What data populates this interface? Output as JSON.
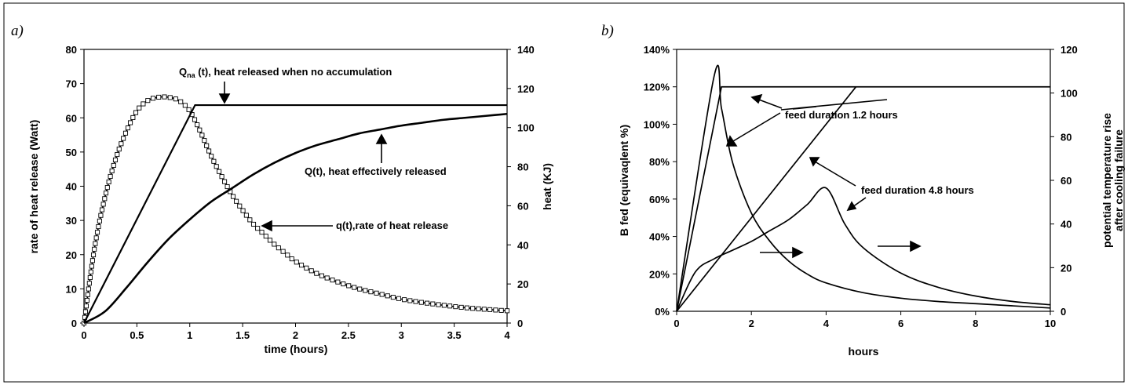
{
  "chart_data": [
    {
      "panel_label": "a)",
      "type": "line",
      "xlabel": "time (hours)",
      "ylabel": "rate of heat release (Watt)",
      "y2label": "heat (KJ)",
      "xlim": [
        0,
        4
      ],
      "ylim": [
        0,
        80
      ],
      "y2lim": [
        0,
        140
      ],
      "xticks": [
        "0",
        "0.5",
        "1",
        "1.5",
        "2",
        "2.5",
        "3",
        "3.5",
        "4"
      ],
      "yticks": [
        "0",
        "10",
        "20",
        "30",
        "40",
        "50",
        "60",
        "70",
        "80"
      ],
      "y2ticks": [
        "0",
        "20",
        "40",
        "60",
        "80",
        "100",
        "120",
        "140"
      ],
      "grid": false,
      "series": [
        {
          "axis": "left",
          "marker": "square",
          "x": [
            0,
            0.1,
            0.2,
            0.3,
            0.4,
            0.5,
            0.6,
            0.7,
            0.8,
            0.9,
            1.0,
            1.1,
            1.2,
            1.3,
            1.4,
            1.5,
            1.6,
            1.7,
            1.8,
            1.9,
            2.0,
            2.2,
            2.4,
            2.6,
            2.8,
            3.0,
            3.2,
            3.4,
            3.6,
            3.8,
            4.0
          ],
          "values": [
            0,
            22,
            37,
            48,
            56,
            62,
            65,
            66,
            66,
            65,
            62,
            56,
            49,
            43,
            37.5,
            33,
            29,
            26,
            23,
            20.5,
            18,
            14.5,
            12,
            10,
            8.5,
            7,
            6,
            5.2,
            4.5,
            4,
            3.6
          ]
        },
        {
          "axis": "right",
          "x": [
            0,
            0.2,
            0.4,
            0.6,
            0.8,
            1.0,
            1.2,
            1.4,
            1.6,
            1.8,
            2.0,
            2.2,
            2.4,
            2.6,
            2.8,
            3.0,
            3.2,
            3.4,
            3.6,
            3.8,
            4.0
          ],
          "values": [
            0,
            6,
            18,
            31,
            43,
            53,
            62,
            69,
            76,
            82,
            87,
            91,
            94,
            97,
            99,
            101,
            102.5,
            104,
            105,
            106,
            107
          ]
        },
        {
          "axis": "right",
          "x": [
            0,
            1.05,
            4.0
          ],
          "values": [
            0,
            111.5,
            111.5
          ]
        }
      ],
      "annotations": [
        {
          "name": "Q",
          "sub": "na",
          "rest": " (t), heat released  when no accumulation"
        },
        {
          "text": "Q(t), heat effectively released"
        },
        {
          "text": "q(t),rate of heat release"
        }
      ]
    },
    {
      "panel_label": "b)",
      "type": "line",
      "xlabel": "hours",
      "ylabel": "B fed (equivaqlent %)",
      "y2label_lines": [
        "potential temperature rise",
        "after cooling failure"
      ],
      "xlim": [
        0,
        10
      ],
      "ylim": [
        0,
        140
      ],
      "y2lim": [
        0,
        120
      ],
      "xticks": [
        "0",
        "2",
        "4",
        "6",
        "8",
        "10"
      ],
      "yticks": [
        "0%",
        "20%",
        "40%",
        "60%",
        "80%",
        "100%",
        "120%",
        "140%"
      ],
      "y2ticks": [
        "0",
        "20",
        "40",
        "60",
        "80",
        "100",
        "120"
      ],
      "grid": false,
      "series": [
        {
          "axis": "left",
          "x": [
            0,
            1.2,
            10
          ],
          "values": [
            0,
            120,
            120
          ]
        },
        {
          "axis": "left",
          "x": [
            0,
            4.8
          ],
          "values": [
            0,
            120
          ]
        },
        {
          "axis": "right",
          "x": [
            0,
            1.0,
            1.2,
            1.5,
            2.0,
            2.5,
            3.0,
            3.5,
            4.0,
            5.0,
            6.0,
            7.0,
            8.0,
            9.0,
            10.0
          ],
          "values": [
            0,
            107.5,
            93,
            68,
            45,
            32,
            23,
            17,
            13,
            8.5,
            6,
            4.5,
            3.5,
            2.5,
            1.5
          ]
        },
        {
          "axis": "right",
          "x": [
            0,
            0.5,
            1.0,
            1.5,
            2.0,
            2.5,
            3.0,
            3.5,
            4.0,
            4.5,
            5.0,
            6.0,
            7.0,
            8.0,
            9.0,
            10.0
          ],
          "values": [
            0,
            18,
            24,
            28,
            32,
            37,
            42,
            49,
            56.5,
            40,
            29,
            17.5,
            11,
            7,
            4.5,
            3
          ]
        }
      ],
      "annotations": [
        {
          "text": "feed duration 1.2 hours"
        },
        {
          "text": "feed duration 4.8 hours"
        }
      ]
    }
  ]
}
